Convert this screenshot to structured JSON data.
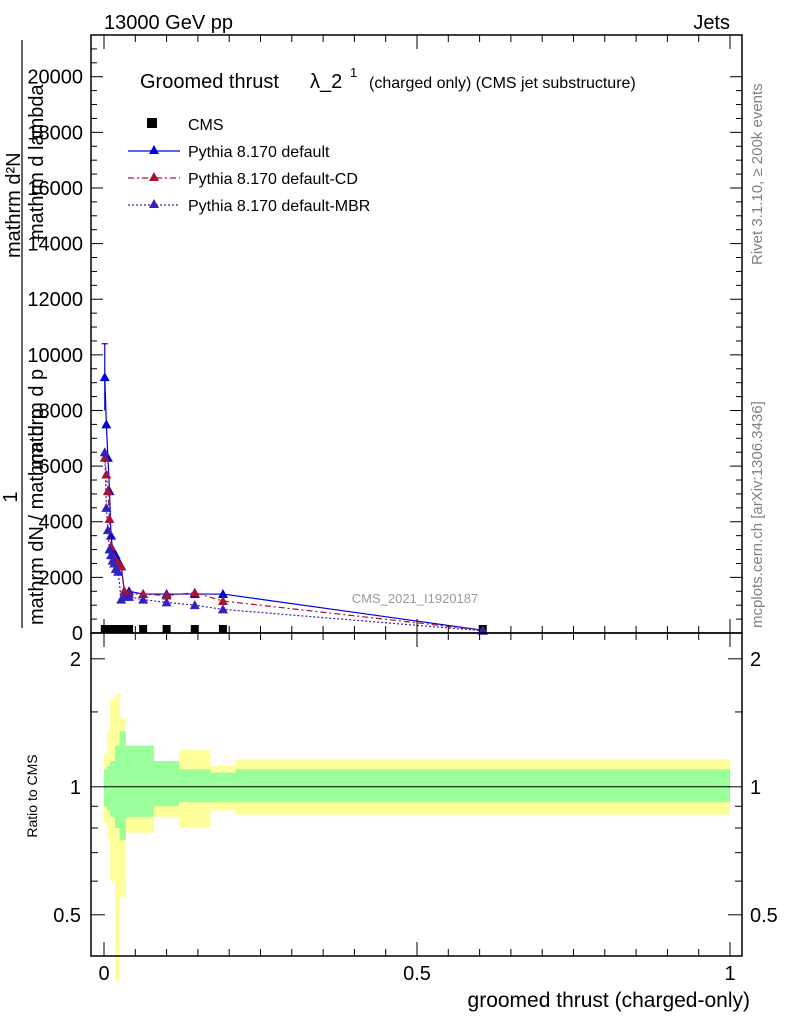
{
  "header": {
    "beam_label": "13000 GeV pp",
    "process_label": "Jets",
    "title_main": "Groomed thrust",
    "title_lambda": "λ_2",
    "title_sup": "1",
    "title_suffix": "(charged only) (CMS jet substructure)",
    "analysis_id": "CMS_2021_I1920187",
    "side_rivet": "Rivet 3.1.10, ≥ 200k events",
    "side_mcplots": "mcplots.cern.ch [arXiv:1306.3436]"
  },
  "ylabel_parts": {
    "numerator_one": "1",
    "denominator_sigma": "mathrm dN / mathrm d p",
    "dN_numerator": "mathrm d²N",
    "dN_denominator": "mathrm d p",
    "subscript_T": "T",
    "lambda_text": "mathrm d lambda"
  },
  "chart_data": {
    "type": "line",
    "title": "Groomed thrust λ_2^1 (charged only) (CMS jet substructure)",
    "xlabel": "groomed thrust (charged-only)",
    "ylabel_ratio": "Ratio to CMS",
    "xlim": [
      -0.02,
      1.0
    ],
    "ylim_main": [
      0,
      21500
    ],
    "ylim_ratio": [
      0.4,
      2.3
    ],
    "x_ticks": [
      "0",
      "0.5",
      "1"
    ],
    "y_ticks_main": [
      "0",
      "2000",
      "4000",
      "6000",
      "8000",
      "10000",
      "12000",
      "14000",
      "16000",
      "18000",
      "20000"
    ],
    "y_ticks_ratio": [
      "0.5",
      "1",
      "2"
    ],
    "legend": [
      "CMS",
      "Pythia 8.170 default",
      "Pythia 8.170 default-CD",
      "Pythia 8.170 default-MBR"
    ],
    "legend_position": "top-left",
    "colors": {
      "data": "#000000",
      "default": "#0000dd",
      "cd": "#aa1133",
      "mbr": "#3322bb",
      "band_outer": "#ffff99",
      "band_inner": "#99ff99"
    },
    "bins": [
      0,
      0.0025,
      0.005,
      0.0075,
      0.01,
      0.0125,
      0.015,
      0.0175,
      0.02,
      0.025,
      0.03,
      0.035,
      0.045,
      0.08,
      0.12,
      0.17,
      0.21,
      1.0
    ],
    "cms": [
      0.95,
      0.25,
      0.28,
      0.32,
      0.35,
      0.38,
      0.4,
      0.42,
      0.44,
      0.46,
      0.48,
      0.49,
      0.5,
      0.51,
      0.52,
      0.53,
      0.3
    ],
    "series": [
      {
        "name": "Pythia 8.170 default",
        "x": [
          0.00125,
          0.00375,
          0.00625,
          0.00875,
          0.01125,
          0.01375,
          0.01625,
          0.01875,
          0.0225,
          0.0275,
          0.0325,
          0.04,
          0.0625,
          0.1,
          0.145,
          0.19,
          0.605
        ],
        "y": [
          9200,
          7500,
          6300,
          5100,
          3500,
          3000,
          2800,
          2800,
          2600,
          2400,
          1500,
          1500,
          1400,
          1400,
          1400,
          1400,
          100
        ]
      },
      {
        "name": "Pythia 8.170 default-CD",
        "x": [
          0.00125,
          0.00375,
          0.00625,
          0.00875,
          0.01125,
          0.01375,
          0.01625,
          0.01875,
          0.0225,
          0.0275,
          0.0325,
          0.04,
          0.0625,
          0.1,
          0.145,
          0.19,
          0.605
        ],
        "y": [
          6300,
          5700,
          5100,
          4100,
          3100,
          2800,
          2700,
          2600,
          2500,
          2400,
          1500,
          1400,
          1400,
          1350,
          1450,
          1150,
          100
        ]
      },
      {
        "name": "Pythia 8.170 default-MBR",
        "x": [
          0.00125,
          0.00375,
          0.00625,
          0.00875,
          0.01125,
          0.01375,
          0.01625,
          0.01875,
          0.0225,
          0.0275,
          0.0325,
          0.04,
          0.0625,
          0.1,
          0.145,
          0.19,
          0.605
        ],
        "y": [
          6500,
          4500,
          3700,
          3000,
          2800,
          2600,
          2500,
          2300,
          2200,
          1200,
          1300,
          1300,
          1200,
          1100,
          1000,
          850,
          80
        ]
      }
    ],
    "ratio_band_inner": [
      [
        0.9,
        1.1
      ],
      [
        0.88,
        1.12
      ],
      [
        0.85,
        1.15
      ],
      [
        0.8,
        1.25
      ],
      [
        0.75,
        1.35
      ],
      [
        0.85,
        1.25
      ],
      [
        0.9,
        1.15
      ],
      [
        0.92,
        1.1
      ],
      [
        0.92,
        1.08
      ],
      [
        0.92,
        1.1
      ]
    ],
    "ratio_band_outer": [
      [
        0.82,
        1.2
      ],
      [
        0.75,
        1.35
      ],
      [
        0.6,
        1.6
      ],
      [
        0.35,
        1.65
      ],
      [
        0.55,
        1.45
      ],
      [
        0.78,
        1.22
      ],
      [
        0.85,
        1.15
      ],
      [
        0.8,
        1.22
      ],
      [
        0.88,
        1.12
      ],
      [
        0.86,
        1.16
      ]
    ],
    "ratio_band_edges": [
      0.0,
      0.005,
      0.01,
      0.0175,
      0.025,
      0.035,
      0.08,
      0.12,
      0.17,
      0.21,
      1.0
    ]
  }
}
